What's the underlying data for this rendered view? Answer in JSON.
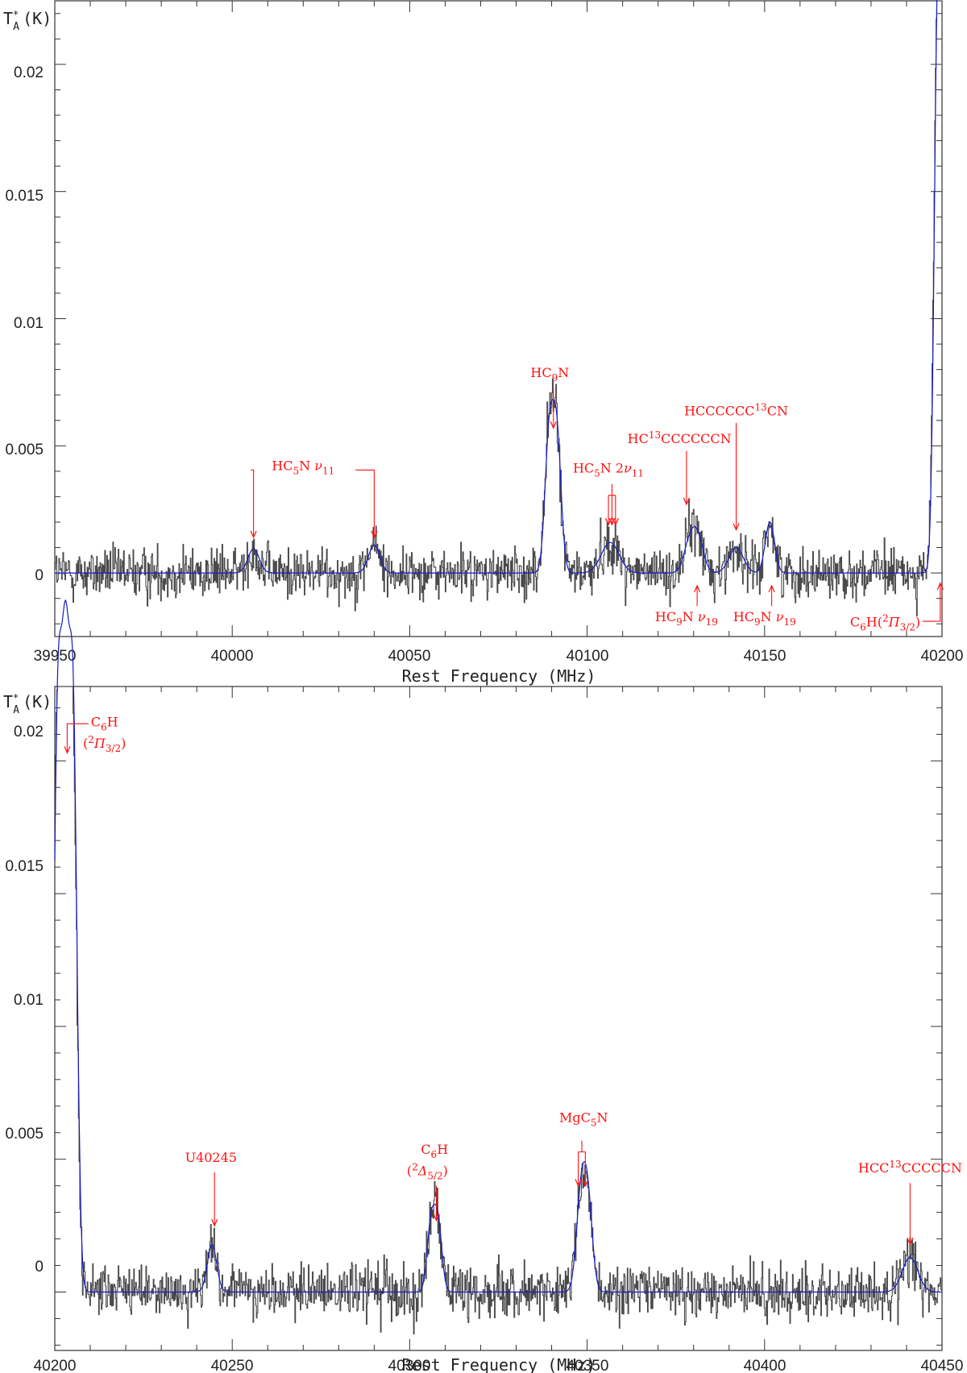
{
  "colors": {
    "data": "#4a4a4a",
    "model": "#1a1acc",
    "annotation": "#ff1010",
    "frame": "#333333"
  },
  "chart_data": [
    {
      "type": "line",
      "title": "",
      "xlabel": "Rest Frequency (MHz)",
      "ylabel_main": "T",
      "ylabel_sup": "*",
      "ylabel_sub": "A",
      "ylabel_unit": "(K)",
      "xlim": [
        39950,
        40200
      ],
      "ylim": [
        -0.0025,
        0.0225
      ],
      "x_ticks": [
        39950,
        40000,
        40050,
        40100,
        40150,
        40200
      ],
      "y_ticks": [
        0,
        0.005,
        0.01,
        0.015,
        0.02
      ],
      "y_tick_labels": [
        "0",
        "0.005",
        "0.01",
        "0.015",
        "0.02"
      ],
      "noise_rms": 0.0005,
      "series": [
        {
          "role": "observed spectrum",
          "style": "histogram",
          "color": "#4a4a4a"
        },
        {
          "role": "model fit",
          "style": "line",
          "color": "#1a1acc"
        }
      ],
      "lines": [
        {
          "center": 40006.0,
          "width": 1.6,
          "peak": 0.00095
        },
        {
          "center": 40040.0,
          "width": 1.6,
          "peak": 0.0011
        },
        {
          "center": 40089.3,
          "width": 1.2,
          "peak": 0.0052
        },
        {
          "center": 40091.5,
          "width": 1.2,
          "peak": 0.0052
        },
        {
          "center": 40106.5,
          "width": 2.5,
          "peak": 0.0012
        },
        {
          "center": 40128.8,
          "width": 1.6,
          "peak": 0.0011
        },
        {
          "center": 40131.2,
          "width": 1.6,
          "peak": 0.0013
        },
        {
          "center": 40142.0,
          "width": 2.0,
          "peak": 0.001
        },
        {
          "center": 40151.5,
          "width": 1.3,
          "peak": 0.002
        },
        {
          "center": 40198.8,
          "width": 1.0,
          "peak": 0.0215
        },
        {
          "center": 40200.8,
          "width": 1.0,
          "peak": 0.0215
        }
      ],
      "annotations": [
        {
          "parts": [
            [
              "HC",
              ""
            ],
            [
              "5",
              "sub"
            ],
            [
              "N  ",
              ""
            ],
            [
              "ν",
              "it"
            ],
            [
              "11",
              "sub"
            ]
          ],
          "label_x": 40020,
          "label_y": 0.00405,
          "bracket": [
            40006.0,
            40040.0
          ],
          "bracket_y": 0.00405,
          "arrow_bottom": 0.0014
        },
        {
          "parts": [
            [
              "HC",
              ""
            ],
            [
              "9",
              "sub"
            ],
            [
              "N",
              ""
            ]
          ],
          "label_x": 40089.5,
          "label_y": 0.0077,
          "arrows": [
            40090.5
          ],
          "arrow_top": 0.0073,
          "arrow_bottom": 0.0057
        },
        {
          "parts": [
            [
              "HC",
              ""
            ],
            [
              "5",
              "sub"
            ],
            [
              "N  2",
              ""
            ],
            [
              "ν",
              "it"
            ],
            [
              "11",
              "sub"
            ]
          ],
          "label_x": 40106,
          "label_y": 0.00395,
          "arrows": [
            40106.0,
            40107.0,
            40108.0
          ],
          "arrow_top": 0.0035,
          "arrow_bottom": 0.0019
        },
        {
          "parts": [
            [
              "HC",
              ""
            ],
            [
              "13",
              "sup"
            ],
            [
              "CCCCCCN",
              ""
            ]
          ],
          "label_x": 40126,
          "label_y": 0.0051,
          "arrows": [
            40128.0
          ],
          "arrow_top": 0.0048,
          "arrow_bottom": 0.0027
        },
        {
          "parts": [
            [
              "HCCCCCC",
              ""
            ],
            [
              "13",
              "sup"
            ],
            [
              "CN",
              ""
            ]
          ],
          "label_x": 40142,
          "label_y": 0.0062,
          "arrows": [
            40142.0
          ],
          "arrow_top": 0.0059,
          "arrow_bottom": 0.0017
        },
        {
          "parts": [
            [
              "HC",
              ""
            ],
            [
              "9",
              "sub"
            ],
            [
              "N  ",
              ""
            ],
            [
              "ν",
              "it"
            ],
            [
              "19",
              "sub"
            ]
          ],
          "label_x": 40128,
          "label_y": -0.0019,
          "arrows_up": [
            40131.0
          ],
          "arrow_top": -0.0005,
          "arrow_bottom": -0.0013
        },
        {
          "parts": [
            [
              "HC",
              ""
            ],
            [
              "9",
              "sub"
            ],
            [
              "N  ",
              ""
            ],
            [
              "ν",
              "it"
            ],
            [
              "19",
              "sub"
            ]
          ],
          "label_x": 40150,
          "label_y": -0.0019,
          "arrows_up": [
            40152.0
          ],
          "arrow_top": -0.0005,
          "arrow_bottom": -0.0013
        },
        {
          "parts": [
            [
              "C",
              ""
            ],
            [
              "6",
              "sub"
            ],
            [
              "H(",
              ""
            ],
            [
              "2",
              "sup"
            ],
            [
              "Π",
              "it"
            ],
            [
              "3/2",
              "sub"
            ],
            [
              ")",
              ""
            ]
          ],
          "label_x": 40184,
          "label_y": -0.0021,
          "elbow": [
            40194.5,
            40199.5,
            -0.0019,
            -0.0004
          ]
        }
      ]
    },
    {
      "type": "line",
      "title": "",
      "xlabel": "Rest Frequency (MHz)",
      "ylabel_main": "T",
      "ylabel_sup": "*",
      "ylabel_sub": "A",
      "ylabel_unit": "(K)",
      "xlim": [
        40200,
        40450
      ],
      "ylim": [
        -0.0022,
        0.0228
      ],
      "x_ticks": [
        40200,
        40250,
        40300,
        40350,
        40400,
        40450
      ],
      "y_ticks": [
        0,
        0.005,
        0.01,
        0.015,
        0.02
      ],
      "y_tick_labels": [
        "0",
        "0.005",
        "0.01",
        "0.015",
        "0.02"
      ],
      "noise_rms": 0.0005,
      "series": [
        {
          "role": "observed spectrum",
          "style": "histogram",
          "color": "#4a4a4a"
        },
        {
          "role": "model fit",
          "style": "line",
          "color": "#1a1acc"
        }
      ],
      "lines": [
        {
          "center": 40200.8,
          "width": 1.1,
          "peak": 0.0205
        },
        {
          "center": 40203.0,
          "width": 1.1,
          "peak": 0.0205
        },
        {
          "center": 40205.2,
          "width": 1.1,
          "peak": 0.0205
        },
        {
          "center": 40244.3,
          "width": 1.3,
          "peak": 0.0018
        },
        {
          "center": 40306.0,
          "width": 1.1,
          "peak": 0.0025
        },
        {
          "center": 40308.0,
          "width": 1.1,
          "peak": 0.0025
        },
        {
          "center": 40348.2,
          "width": 1.3,
          "peak": 0.0033
        },
        {
          "center": 40350.2,
          "width": 1.3,
          "peak": 0.0033
        },
        {
          "center": 40441.0,
          "width": 2.2,
          "peak": 0.0013
        }
      ],
      "annotations": [
        {
          "parts": [
            [
              "C",
              ""
            ],
            [
              "6",
              "sub"
            ],
            [
              "H",
              ""
            ]
          ],
          "label_x": 40214,
          "label_y": 0.0213,
          "elbow": [
            40209.5,
            40203.5,
            0.0214,
            0.0203
          ]
        },
        {
          "parts": [
            [
              "(",
              ""
            ],
            [
              "2",
              "sup"
            ],
            [
              "Π",
              "it"
            ],
            [
              "3/2",
              "sub"
            ],
            [
              ")",
              ""
            ]
          ],
          "label_x": 40214,
          "label_y": 0.0205
        },
        {
          "parts": [
            [
              "U40245",
              ""
            ]
          ],
          "label_x": 40244,
          "label_y": 0.0049,
          "arrows": [
            40245.0
          ],
          "arrow_top": 0.0045,
          "arrow_bottom": 0.0025
        },
        {
          "parts": [
            [
              "C",
              ""
            ],
            [
              "6",
              "sub"
            ],
            [
              "H",
              ""
            ]
          ],
          "label_x": 40307,
          "label_y": 0.0052
        },
        {
          "parts": [
            [
              "(",
              ""
            ],
            [
              "2",
              "sup"
            ],
            [
              "Δ",
              "it"
            ],
            [
              "5/2",
              "sub"
            ],
            [
              ")",
              ""
            ]
          ],
          "label_x": 40305,
          "label_y": 0.0044,
          "arrows": [
            40307.5
          ],
          "arrow_top": 0.004,
          "arrow_bottom": 0.0027
        },
        {
          "parts": [
            [
              "MgC",
              ""
            ],
            [
              "5",
              "sub"
            ],
            [
              "N",
              ""
            ]
          ],
          "label_x": 40349,
          "label_y": 0.0064,
          "arrows": [
            40347.5,
            40349.5
          ],
          "arrow_top": 0.0057,
          "arrow_bottom": 0.004
        },
        {
          "parts": [
            [
              "HCC",
              ""
            ],
            [
              "13",
              "sup"
            ],
            [
              "CCCCCN",
              ""
            ]
          ],
          "label_x": 40441,
          "label_y": 0.0045,
          "arrows": [
            40441.0
          ],
          "arrow_top": 0.0041,
          "arrow_bottom": 0.0018
        }
      ]
    }
  ]
}
